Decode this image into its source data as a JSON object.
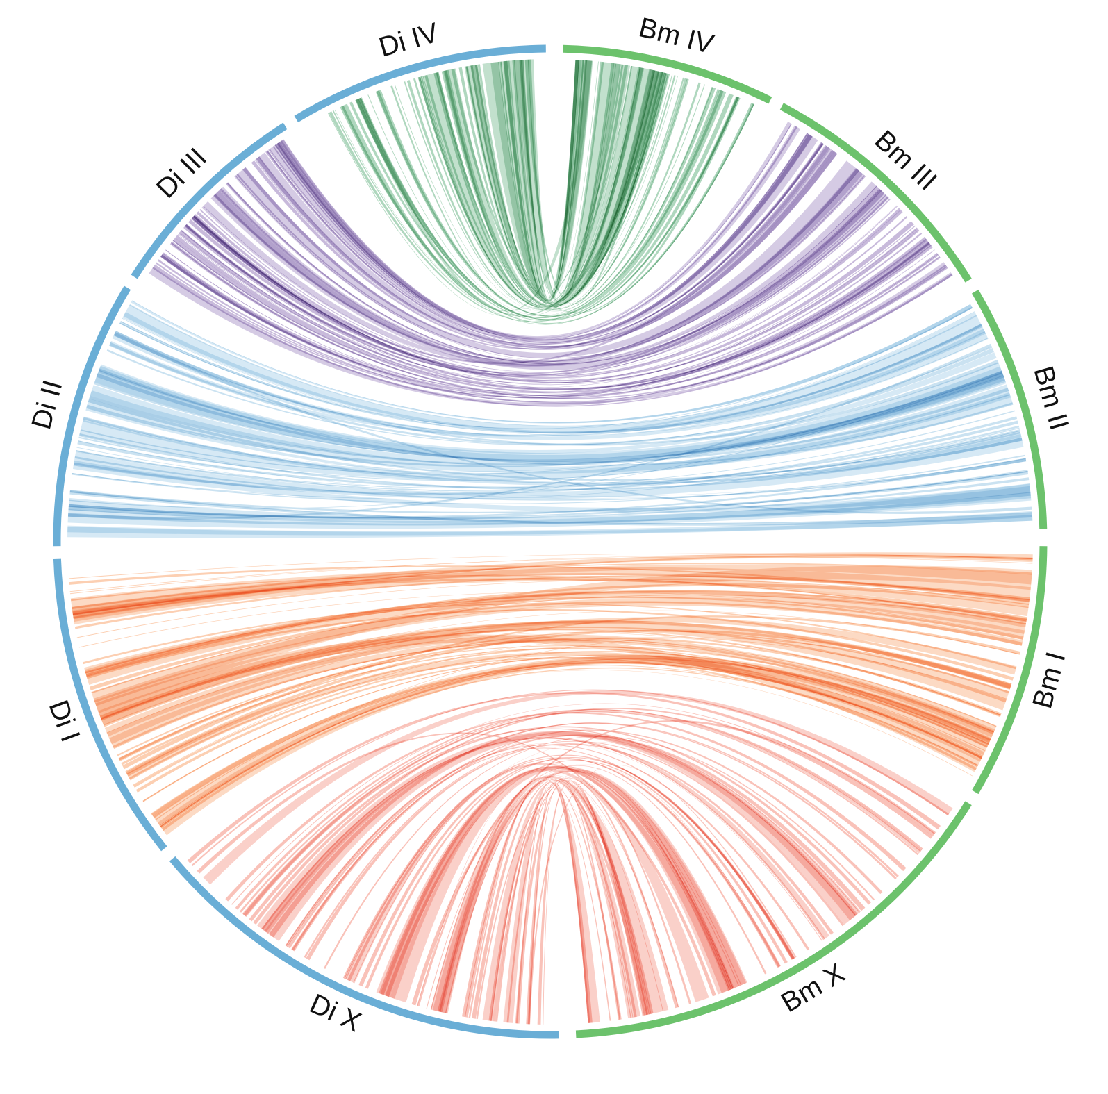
{
  "colors": {
    "di_track": "#6aaed6",
    "bm_track": "#6cc26c",
    "link_IV": "#6db689",
    "link_III": "#9a82be",
    "link_II": "#9ecbe6",
    "link_I": "#f9a873",
    "link_X": "#f4907f"
  },
  "segments": [
    {
      "id": "BmIV",
      "label": "Bm IV",
      "species": "Bm",
      "start": -88.5,
      "end": -63.5
    },
    {
      "id": "BmIII",
      "label": "Bm III",
      "species": "Bm",
      "start": -62.0,
      "end": -32.0
    },
    {
      "id": "BmII",
      "label": "Bm II",
      "species": "Bm",
      "start": -30.5,
      "end": -1.5
    },
    {
      "id": "BmI",
      "label": "Bm I",
      "species": "Bm",
      "start": 0.5,
      "end": 30.5
    },
    {
      "id": "BmX",
      "label": "Bm X",
      "species": "Bm",
      "start": 32.0,
      "end": 87.0
    },
    {
      "id": "DiX",
      "label": "Di X",
      "species": "Di",
      "start": 89.0,
      "end": 140.0
    },
    {
      "id": "DiI",
      "label": "Di I",
      "species": "Di",
      "start": 141.5,
      "end": 178.0
    },
    {
      "id": "DiII",
      "label": "Di II",
      "species": "Di",
      "start": 179.5,
      "end": 211.0
    },
    {
      "id": "DiIII",
      "label": "Di III",
      "species": "Di",
      "start": 212.5,
      "end": 237.5
    },
    {
      "id": "DiIV",
      "label": "Di IV",
      "species": "Di",
      "start": 239.0,
      "end": 269.5
    }
  ],
  "link_groups": [
    {
      "pair": "Di IV – Bm IV",
      "color_key": "link_IV",
      "src": [
        241.0,
        268.5
      ],
      "dst": [
        -87.0,
        -65.0
      ],
      "count": 60
    },
    {
      "pair": "Di III – Bm III",
      "color_key": "link_III",
      "src": [
        213.5,
        236.5
      ],
      "dst": [
        -60.5,
        -33.5
      ],
      "count": 60
    },
    {
      "pair": "Di II – Bm II",
      "color_key": "link_II",
      "src": [
        180.5,
        210.0
      ],
      "dst": [
        -29.5,
        -2.5
      ],
      "count": 60
    },
    {
      "pair": "Di I – Bm I",
      "color_key": "link_I",
      "src": [
        142.5,
        177.0
      ],
      "dst": [
        1.5,
        29.5
      ],
      "count": 65
    },
    {
      "pair": "Di X – Bm X",
      "color_key": "link_X",
      "src": [
        90.5,
        139.0
      ],
      "dst": [
        33.5,
        85.5
      ],
      "count": 70
    }
  ]
}
